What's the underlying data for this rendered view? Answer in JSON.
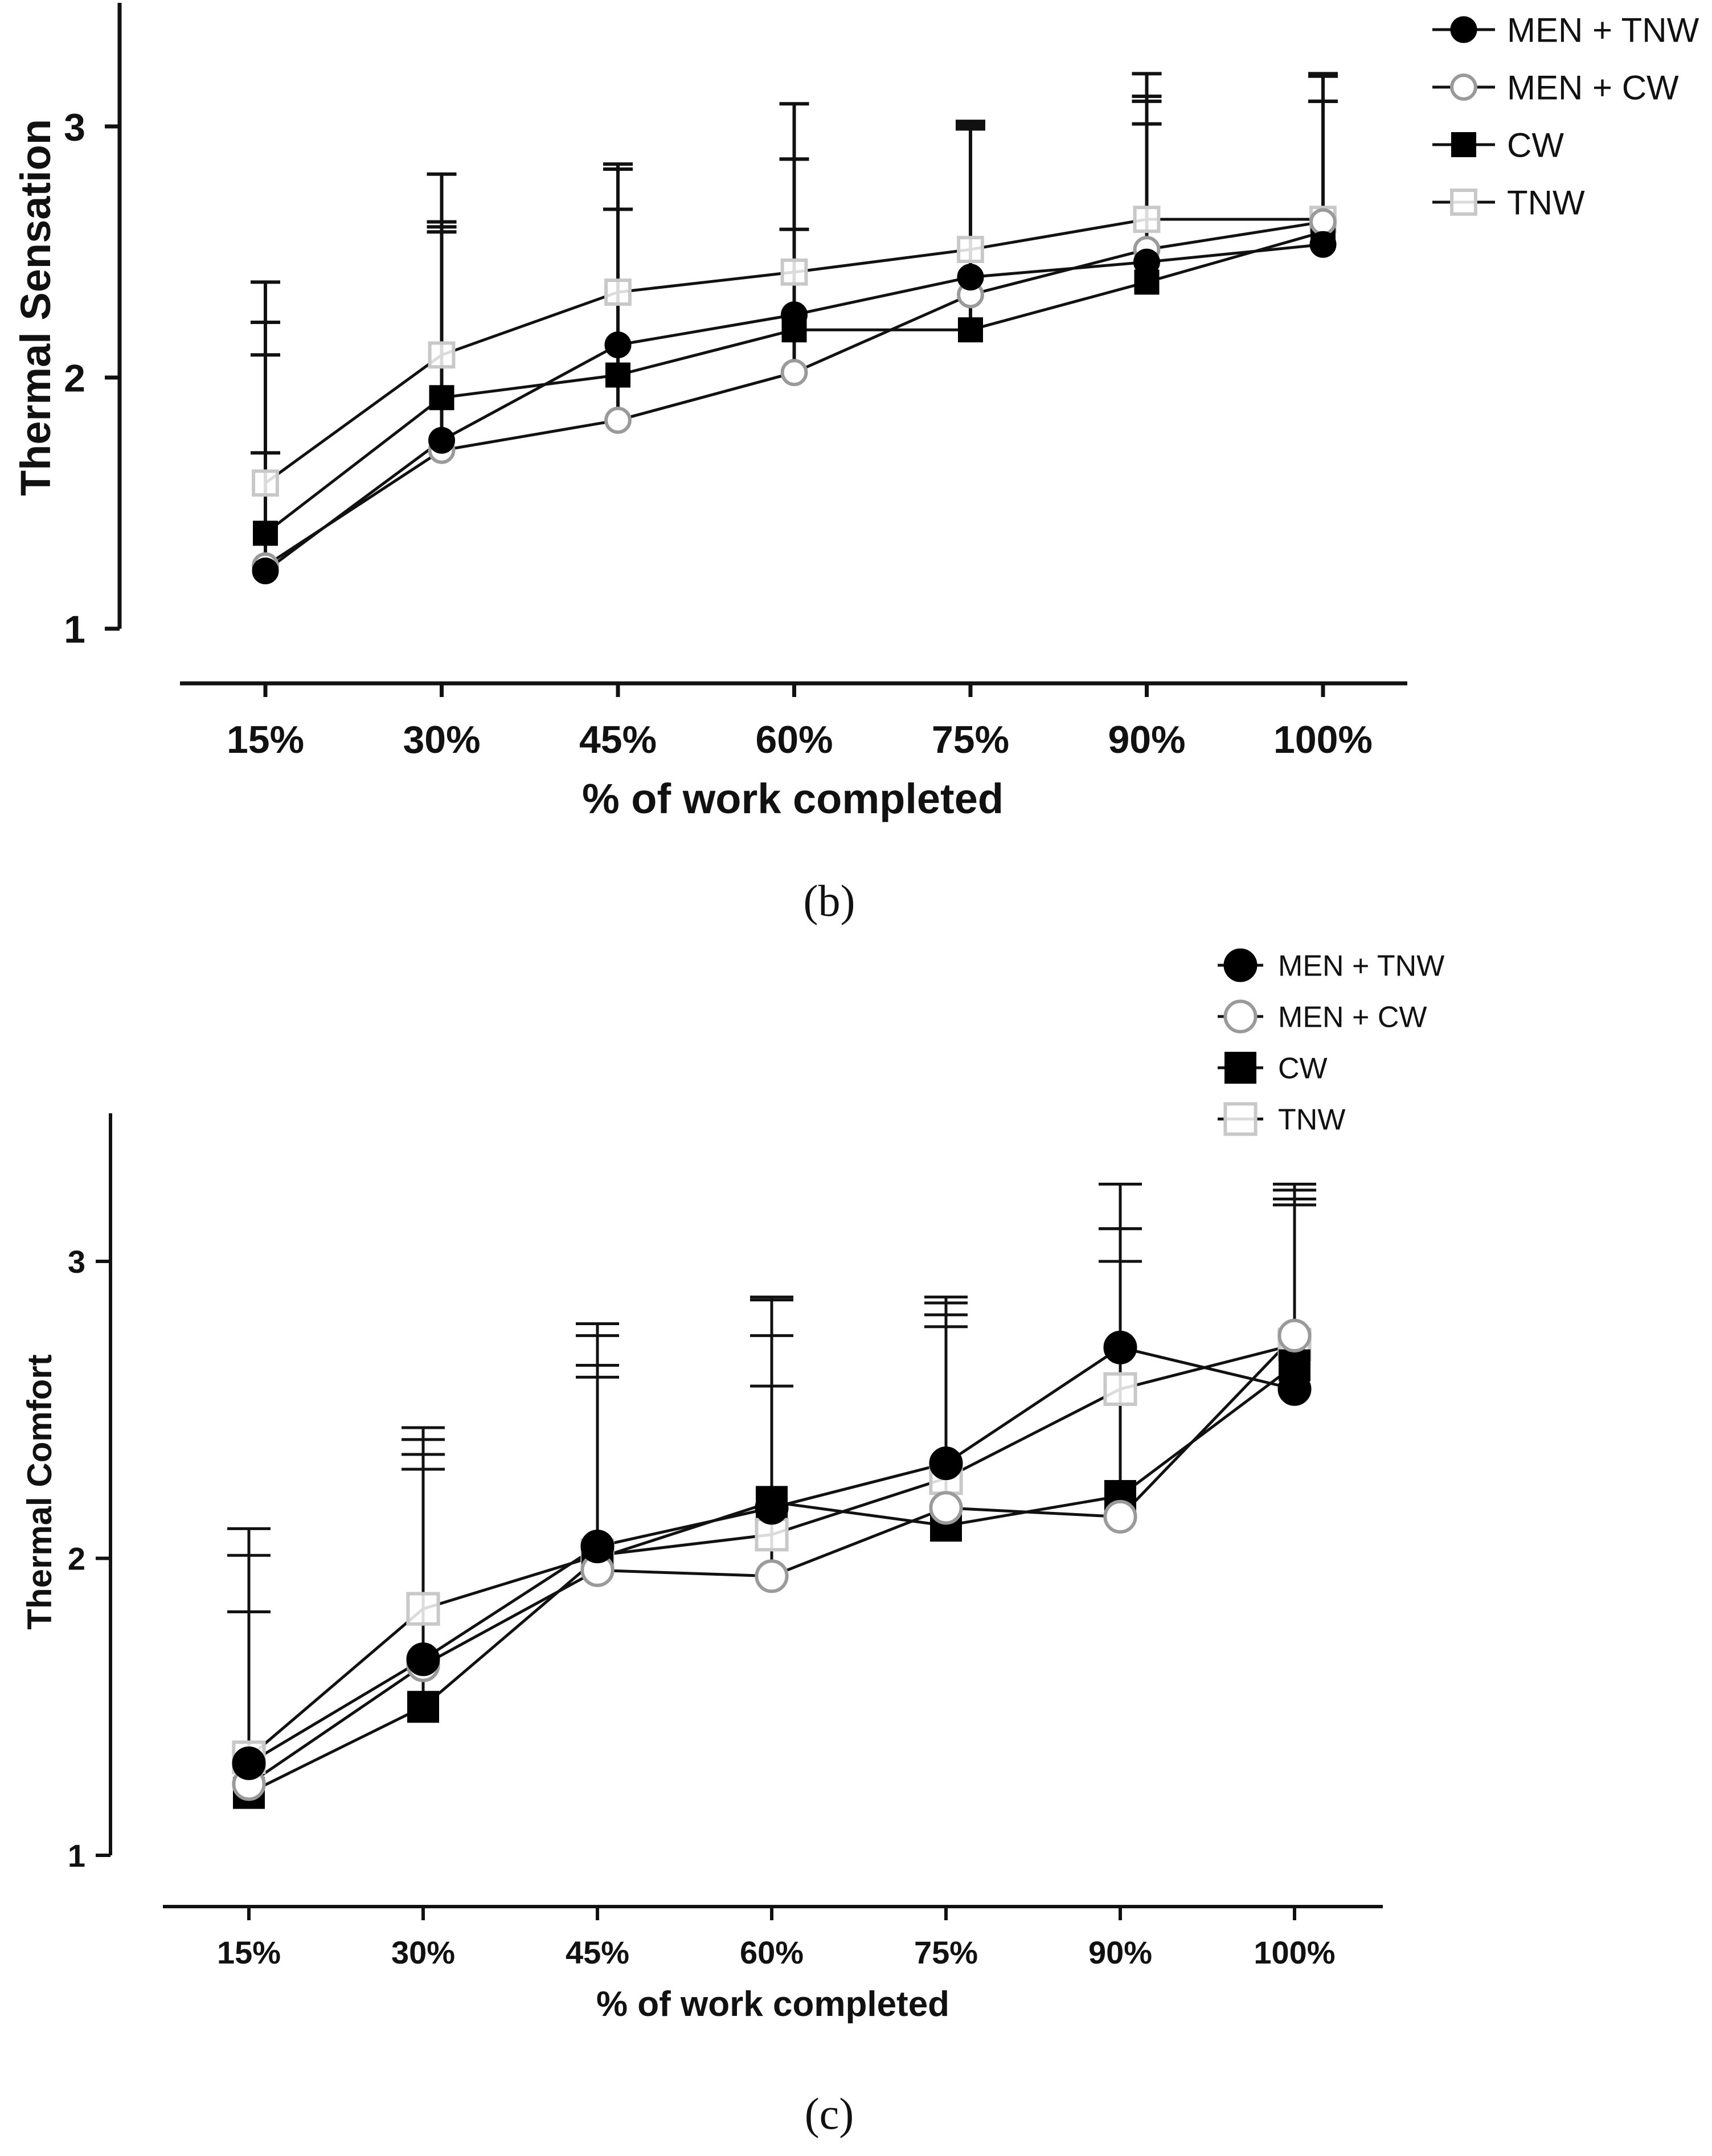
{
  "chart_data": [
    {
      "id": "b",
      "type": "line",
      "caption": "(b)",
      "title": "",
      "xlabel": "% of work completed",
      "ylabel": "Thermal Sensation",
      "categories": [
        "15%",
        "30%",
        "45%",
        "60%",
        "75%",
        "90%",
        "100%"
      ],
      "yticks": [
        1,
        2,
        3
      ],
      "ylim": [
        1,
        3.5
      ],
      "legend_position": "top-right",
      "series": [
        {
          "name": "MEN + TNW",
          "marker": "filled-circle",
          "color": "#000000",
          "values": [
            1.23,
            1.75,
            2.13,
            2.25,
            2.4,
            2.46,
            2.53
          ],
          "error_upper": [
            2.22,
            2.62,
            2.85,
            2.87,
            3.02,
            3.1,
            3.1
          ]
        },
        {
          "name": "MEN + CW",
          "marker": "open-circle",
          "color": "#9a9a9a",
          "values": [
            1.25,
            1.71,
            1.83,
            2.02,
            2.33,
            2.51,
            2.62
          ],
          "error_upper": [
            1.7,
            2.58,
            2.67,
            2.59,
            2.99,
            3.01,
            3.1
          ]
        },
        {
          "name": "CW",
          "marker": "filled-square",
          "color": "#000000",
          "values": [
            1.38,
            1.92,
            2.01,
            2.19,
            2.19,
            2.38,
            2.58
          ],
          "error_upper": [
            2.09,
            2.6,
            2.83,
            2.87,
            3.0,
            3.12,
            3.2
          ]
        },
        {
          "name": "TNW",
          "marker": "open-square",
          "color": "#c8c8c8",
          "values": [
            1.58,
            2.09,
            2.34,
            2.42,
            2.51,
            2.63,
            2.63
          ],
          "error_upper": [
            2.38,
            2.81,
            2.83,
            3.09,
            3.01,
            3.21,
            3.21
          ]
        }
      ]
    },
    {
      "id": "c",
      "type": "line",
      "caption": "(c)",
      "title": "",
      "xlabel": "% of work completed",
      "ylabel": "Thermal Comfort",
      "categories": [
        "15%",
        "30%",
        "45%",
        "60%",
        "75%",
        "90%",
        "100%"
      ],
      "yticks": [
        1,
        2,
        3
      ],
      "ylim": [
        1,
        3.5
      ],
      "legend_position": "top-right",
      "series": [
        {
          "name": "MEN + TNW",
          "marker": "filled-circle",
          "color": "#000000",
          "values": [
            1.31,
            1.66,
            2.04,
            2.17,
            2.32,
            2.71,
            2.57
          ],
          "error_upper": [
            2.1,
            2.44,
            2.79,
            2.87,
            2.88,
            3.26,
            3.21
          ]
        },
        {
          "name": "MEN + CW",
          "marker": "open-circle",
          "color": "#9a9a9a",
          "values": [
            1.24,
            1.64,
            1.96,
            1.94,
            2.17,
            2.14,
            2.75
          ],
          "error_upper": [
            1.82,
            2.3,
            2.61,
            2.58,
            2.78,
            3.0,
            3.26
          ]
        },
        {
          "name": "CW",
          "marker": "filled-square",
          "color": "#000000",
          "values": [
            1.21,
            1.5,
            2.0,
            2.19,
            2.11,
            2.21,
            2.65
          ],
          "error_upper": [
            2.01,
            2.35,
            2.65,
            2.75,
            2.82,
            3.11,
            3.19
          ]
        },
        {
          "name": "TNW",
          "marker": "open-square",
          "color": "#c8c8c8",
          "values": [
            1.33,
            1.83,
            2.01,
            2.08,
            2.27,
            2.57,
            2.72
          ],
          "error_upper": [
            1.82,
            2.4,
            2.75,
            2.88,
            2.86,
            3.11,
            3.24
          ]
        }
      ]
    }
  ]
}
